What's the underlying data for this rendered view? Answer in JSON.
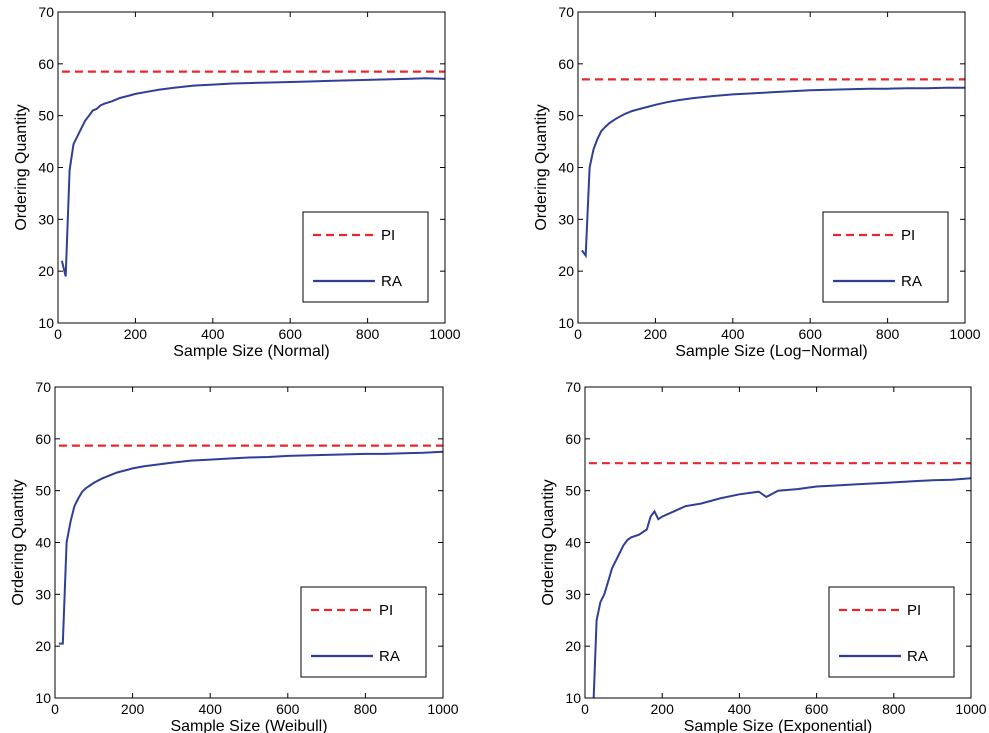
{
  "figure": {
    "colors": {
      "pi": "#e8262d",
      "ra": "#2f3f96",
      "axis": "#000000",
      "background": "#ffffff"
    }
  },
  "chart_data": [
    {
      "type": "line",
      "xlabel": "Sample Size (Normal)",
      "ylabel": "Ordering Quantity",
      "xlim": [
        0,
        1000
      ],
      "ylim": [
        10,
        70
      ],
      "xticks": [
        0,
        200,
        400,
        600,
        800,
        1000
      ],
      "yticks": [
        10,
        20,
        30,
        40,
        50,
        60,
        70
      ],
      "grid": false,
      "legend_position": "lower-right",
      "series": [
        {
          "name": "PI",
          "style": "dashed",
          "color": "#e8262d",
          "x": [
            10,
            1000
          ],
          "y": [
            58.5,
            58.5
          ]
        },
        {
          "name": "RA",
          "style": "solid",
          "color": "#2f3f96",
          "x": [
            10,
            20,
            30,
            40,
            50,
            60,
            70,
            80,
            90,
            100,
            110,
            120,
            140,
            160,
            180,
            200,
            230,
            260,
            300,
            350,
            400,
            450,
            500,
            550,
            600,
            650,
            700,
            750,
            800,
            850,
            900,
            950,
            1000
          ],
          "y": [
            22,
            19,
            39.5,
            44.5,
            46,
            47.5,
            49,
            50,
            51,
            51.3,
            52,
            52.3,
            52.8,
            53.4,
            53.8,
            54.2,
            54.6,
            55,
            55.4,
            55.8,
            56,
            56.2,
            56.3,
            56.4,
            56.5,
            56.6,
            56.7,
            56.8,
            56.9,
            57,
            57.1,
            57.2,
            57.1
          ]
        }
      ]
    },
    {
      "type": "line",
      "xlabel": "Sample Size (Log−Normal)",
      "ylabel": "Ordering Quantity",
      "xlim": [
        0,
        1000
      ],
      "ylim": [
        10,
        70
      ],
      "xticks": [
        0,
        200,
        400,
        600,
        800,
        1000
      ],
      "yticks": [
        10,
        20,
        30,
        40,
        50,
        60,
        70
      ],
      "grid": false,
      "legend_position": "lower-right",
      "series": [
        {
          "name": "PI",
          "style": "dashed",
          "color": "#e8262d",
          "x": [
            10,
            1000
          ],
          "y": [
            57,
            57
          ]
        },
        {
          "name": "RA",
          "style": "solid",
          "color": "#2f3f96",
          "x": [
            10,
            20,
            30,
            40,
            50,
            60,
            70,
            80,
            90,
            100,
            120,
            140,
            160,
            180,
            200,
            230,
            260,
            300,
            350,
            400,
            450,
            500,
            550,
            600,
            650,
            700,
            750,
            800,
            850,
            900,
            950,
            1000
          ],
          "y": [
            24,
            23,
            40,
            43.5,
            45.5,
            47,
            47.8,
            48.5,
            49,
            49.5,
            50.3,
            50.9,
            51.3,
            51.7,
            52.1,
            52.6,
            53,
            53.4,
            53.8,
            54.1,
            54.3,
            54.5,
            54.7,
            54.9,
            55,
            55.1,
            55.2,
            55.2,
            55.3,
            55.3,
            55.4,
            55.4
          ]
        }
      ]
    },
    {
      "type": "line",
      "xlabel": "Sample Size (Weibull)",
      "ylabel": "Ordering Quantity",
      "xlim": [
        0,
        1000
      ],
      "ylim": [
        10,
        70
      ],
      "xticks": [
        0,
        200,
        400,
        600,
        800,
        1000
      ],
      "yticks": [
        10,
        20,
        30,
        40,
        50,
        60,
        70
      ],
      "grid": false,
      "legend_position": "lower-right",
      "series": [
        {
          "name": "PI",
          "style": "dashed",
          "color": "#e8262d",
          "x": [
            10,
            1000
          ],
          "y": [
            58.7,
            58.7
          ]
        },
        {
          "name": "RA",
          "style": "solid",
          "color": "#2f3f96",
          "x": [
            10,
            20,
            30,
            40,
            50,
            60,
            70,
            80,
            90,
            100,
            120,
            140,
            160,
            180,
            200,
            230,
            260,
            300,
            350,
            400,
            450,
            500,
            550,
            600,
            650,
            700,
            750,
            800,
            850,
            900,
            950,
            1000
          ],
          "y": [
            20.5,
            20.5,
            40,
            44,
            47,
            48.5,
            49.8,
            50.5,
            51,
            51.5,
            52.3,
            52.9,
            53.5,
            53.9,
            54.3,
            54.7,
            55,
            55.4,
            55.8,
            56,
            56.2,
            56.4,
            56.5,
            56.7,
            56.8,
            56.9,
            57,
            57.1,
            57.1,
            57.2,
            57.3,
            57.5
          ]
        }
      ]
    },
    {
      "type": "line",
      "xlabel": "Sample Size (Exponential)",
      "ylabel": "Ordering Quantity",
      "xlim": [
        0,
        1000
      ],
      "ylim": [
        10,
        70
      ],
      "xticks": [
        0,
        200,
        400,
        600,
        800,
        1000
      ],
      "yticks": [
        10,
        20,
        30,
        40,
        50,
        60,
        70
      ],
      "grid": false,
      "legend_position": "lower-right",
      "series": [
        {
          "name": "PI",
          "style": "dashed",
          "color": "#e8262d",
          "x": [
            10,
            1000
          ],
          "y": [
            55.3,
            55.3
          ]
        },
        {
          "name": "RA",
          "style": "solid",
          "color": "#2f3f96",
          "x": [
            10,
            20,
            30,
            40,
            50,
            60,
            70,
            80,
            90,
            100,
            110,
            120,
            140,
            160,
            170,
            180,
            190,
            200,
            230,
            260,
            300,
            350,
            400,
            450,
            470,
            500,
            550,
            600,
            650,
            700,
            750,
            800,
            850,
            900,
            950,
            1000
          ],
          "y": [
            5,
            5,
            25,
            28.5,
            30,
            32.5,
            35,
            36.5,
            38,
            39.5,
            40.5,
            41,
            41.5,
            42.5,
            45,
            46,
            44.5,
            45,
            46,
            47,
            47.5,
            48.5,
            49.3,
            49.8,
            48.8,
            50,
            50.3,
            50.8,
            51,
            51.2,
            51.4,
            51.6,
            51.8,
            52,
            52.1,
            52.4
          ]
        }
      ]
    }
  ]
}
